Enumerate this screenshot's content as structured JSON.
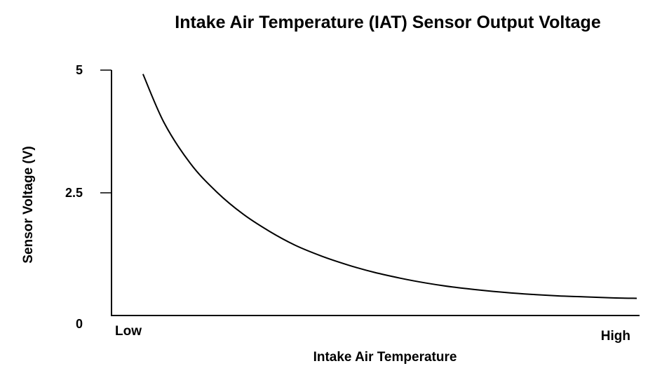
{
  "chart_data": {
    "type": "line",
    "title": "Intake Air Temperature (IAT) Sensor Output Voltage",
    "xlabel": "Intake Air Temperature",
    "ylabel": "Sensor Voltage (V)",
    "x_axis_end_labels": {
      "low": "Low",
      "high": "High"
    },
    "x_ticks_numeric": false,
    "y_ticks": [
      {
        "value": 5,
        "label": "5"
      },
      {
        "value": 2.5,
        "label": "2.5"
      },
      {
        "value": 0,
        "label": "0"
      }
    ],
    "xlim": [
      0,
      1
    ],
    "ylim": [
      0,
      5
    ],
    "grid": false,
    "line_color": "#000000",
    "series": [
      {
        "x": [
          0.06,
          0.1,
          0.15,
          0.2,
          0.25,
          0.3,
          0.35,
          0.4,
          0.45,
          0.5,
          0.55,
          0.6,
          0.65,
          0.7,
          0.75,
          0.8,
          0.85,
          0.9,
          0.95,
          1.0
        ],
        "values": [
          4.92,
          3.93,
          3.1,
          2.52,
          2.07,
          1.72,
          1.43,
          1.21,
          1.03,
          0.88,
          0.76,
          0.66,
          0.58,
          0.52,
          0.47,
          0.43,
          0.4,
          0.38,
          0.36,
          0.35
        ]
      }
    ]
  }
}
